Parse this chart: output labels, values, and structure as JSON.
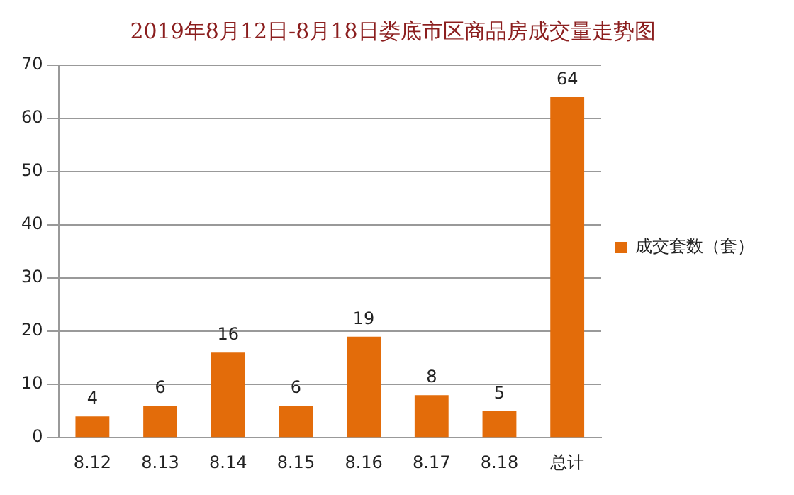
{
  "chart_data": {
    "type": "bar",
    "title": "2019年8月12日-8月18日娄底市区商品房成交量走势图",
    "categories": [
      "8.12",
      "8.13",
      "8.14",
      "8.15",
      "8.16",
      "8.17",
      "8.18",
      "总计"
    ],
    "series": [
      {
        "name": "成交套数（套）",
        "color": "#e36c0a",
        "values": [
          4,
          6,
          16,
          6,
          19,
          8,
          5,
          64
        ]
      }
    ],
    "ylim": [
      0,
      70
    ],
    "yticks": [
      0,
      10,
      20,
      30,
      40,
      50,
      60,
      70
    ],
    "grid": "y",
    "legend": "right",
    "data_labels": true
  }
}
